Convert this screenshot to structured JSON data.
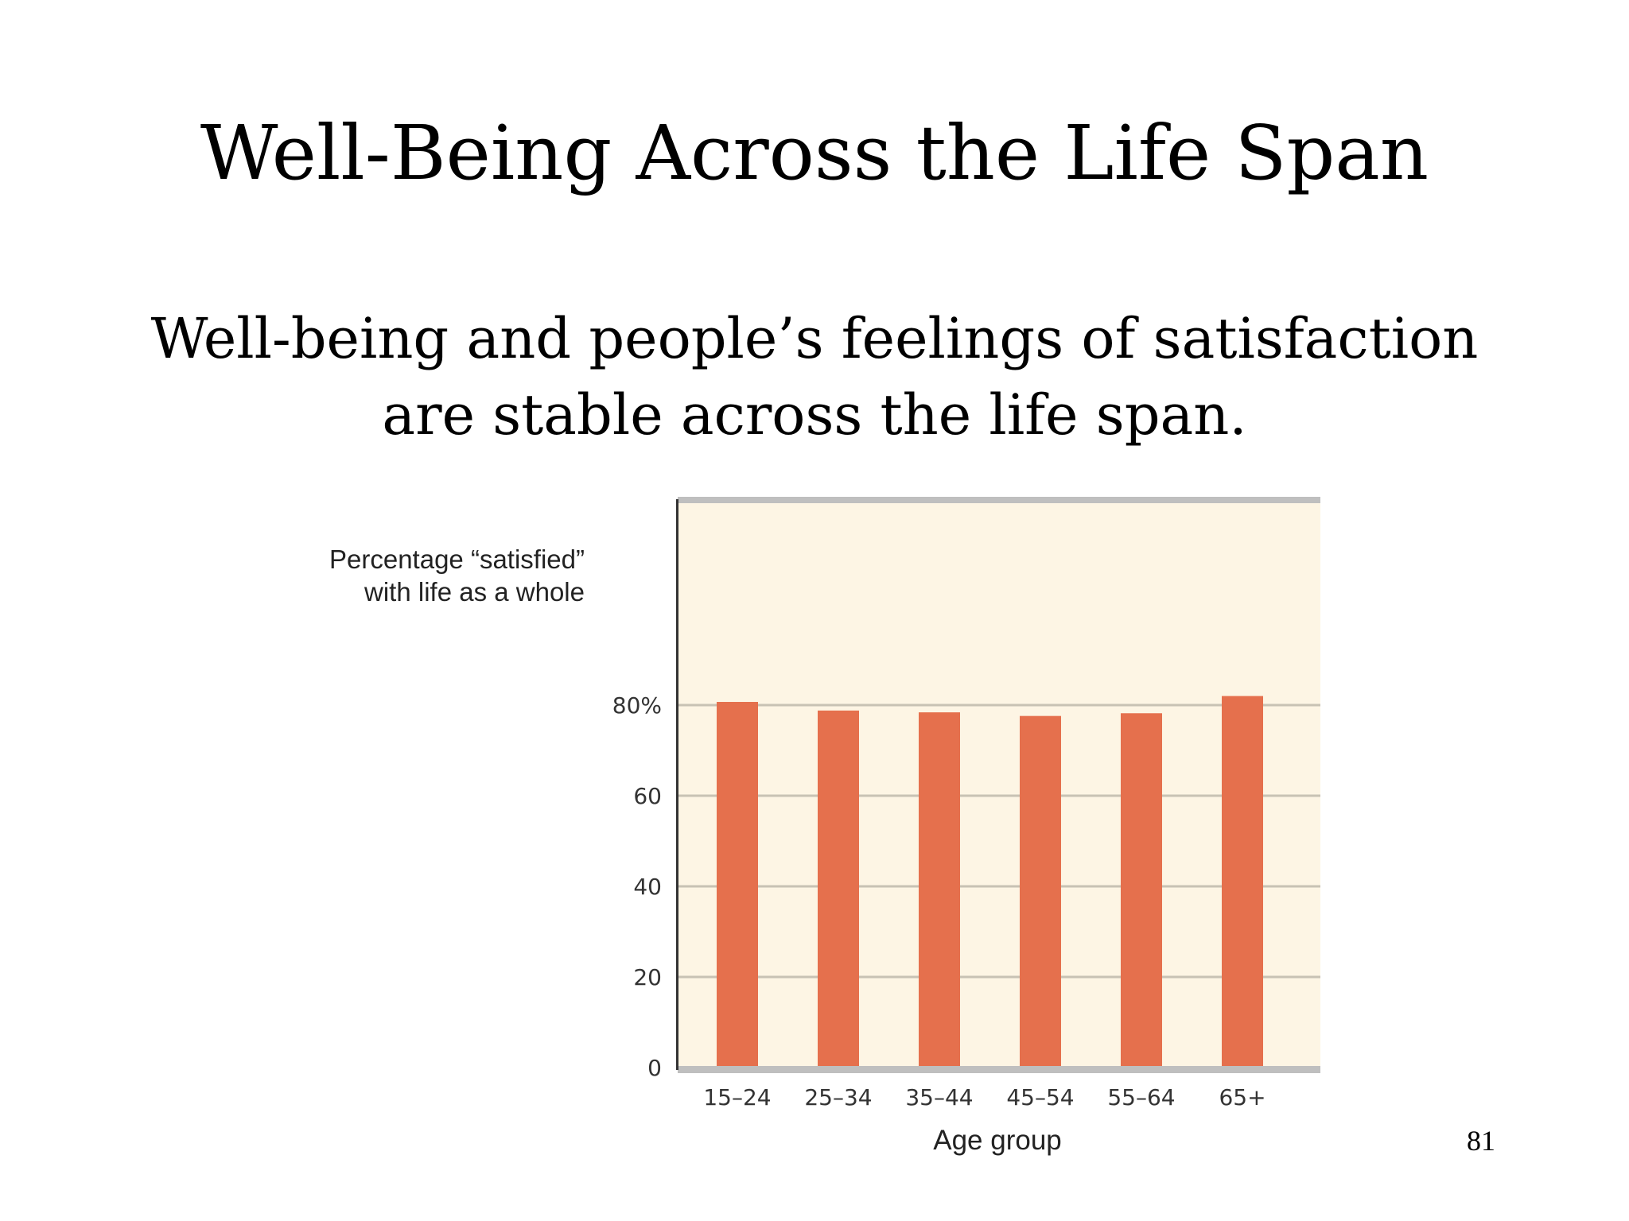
{
  "slide": {
    "title": "Well-Being Across the Life Span",
    "subtitle_line1": "Well-being and people’s feelings of satisfaction",
    "subtitle_line2": "are stable across the life span.",
    "page_number": "81"
  },
  "colors": {
    "bar": "#E5704D",
    "plot_background": "#FDF5E4",
    "grid": "#C8C2B4",
    "frame": "#BFBFBF"
  },
  "chart_data": {
    "type": "bar",
    "categories": [
      "15–24",
      "25–34",
      "35–44",
      "45–54",
      "55–64",
      "65+"
    ],
    "values": [
      80.7,
      78.8,
      78.4,
      77.6,
      78.2,
      82.0
    ],
    "ylabel_line1": "Percentage “satisfied”",
    "ylabel_line2": "with life as a whole",
    "xlabel": "Age group",
    "ylim": [
      0,
      100
    ],
    "y_ticks": [
      0,
      20,
      40,
      60,
      80
    ],
    "y_tick_labels": [
      "0",
      "20",
      "40",
      "60",
      "80%"
    ],
    "grid": true
  }
}
